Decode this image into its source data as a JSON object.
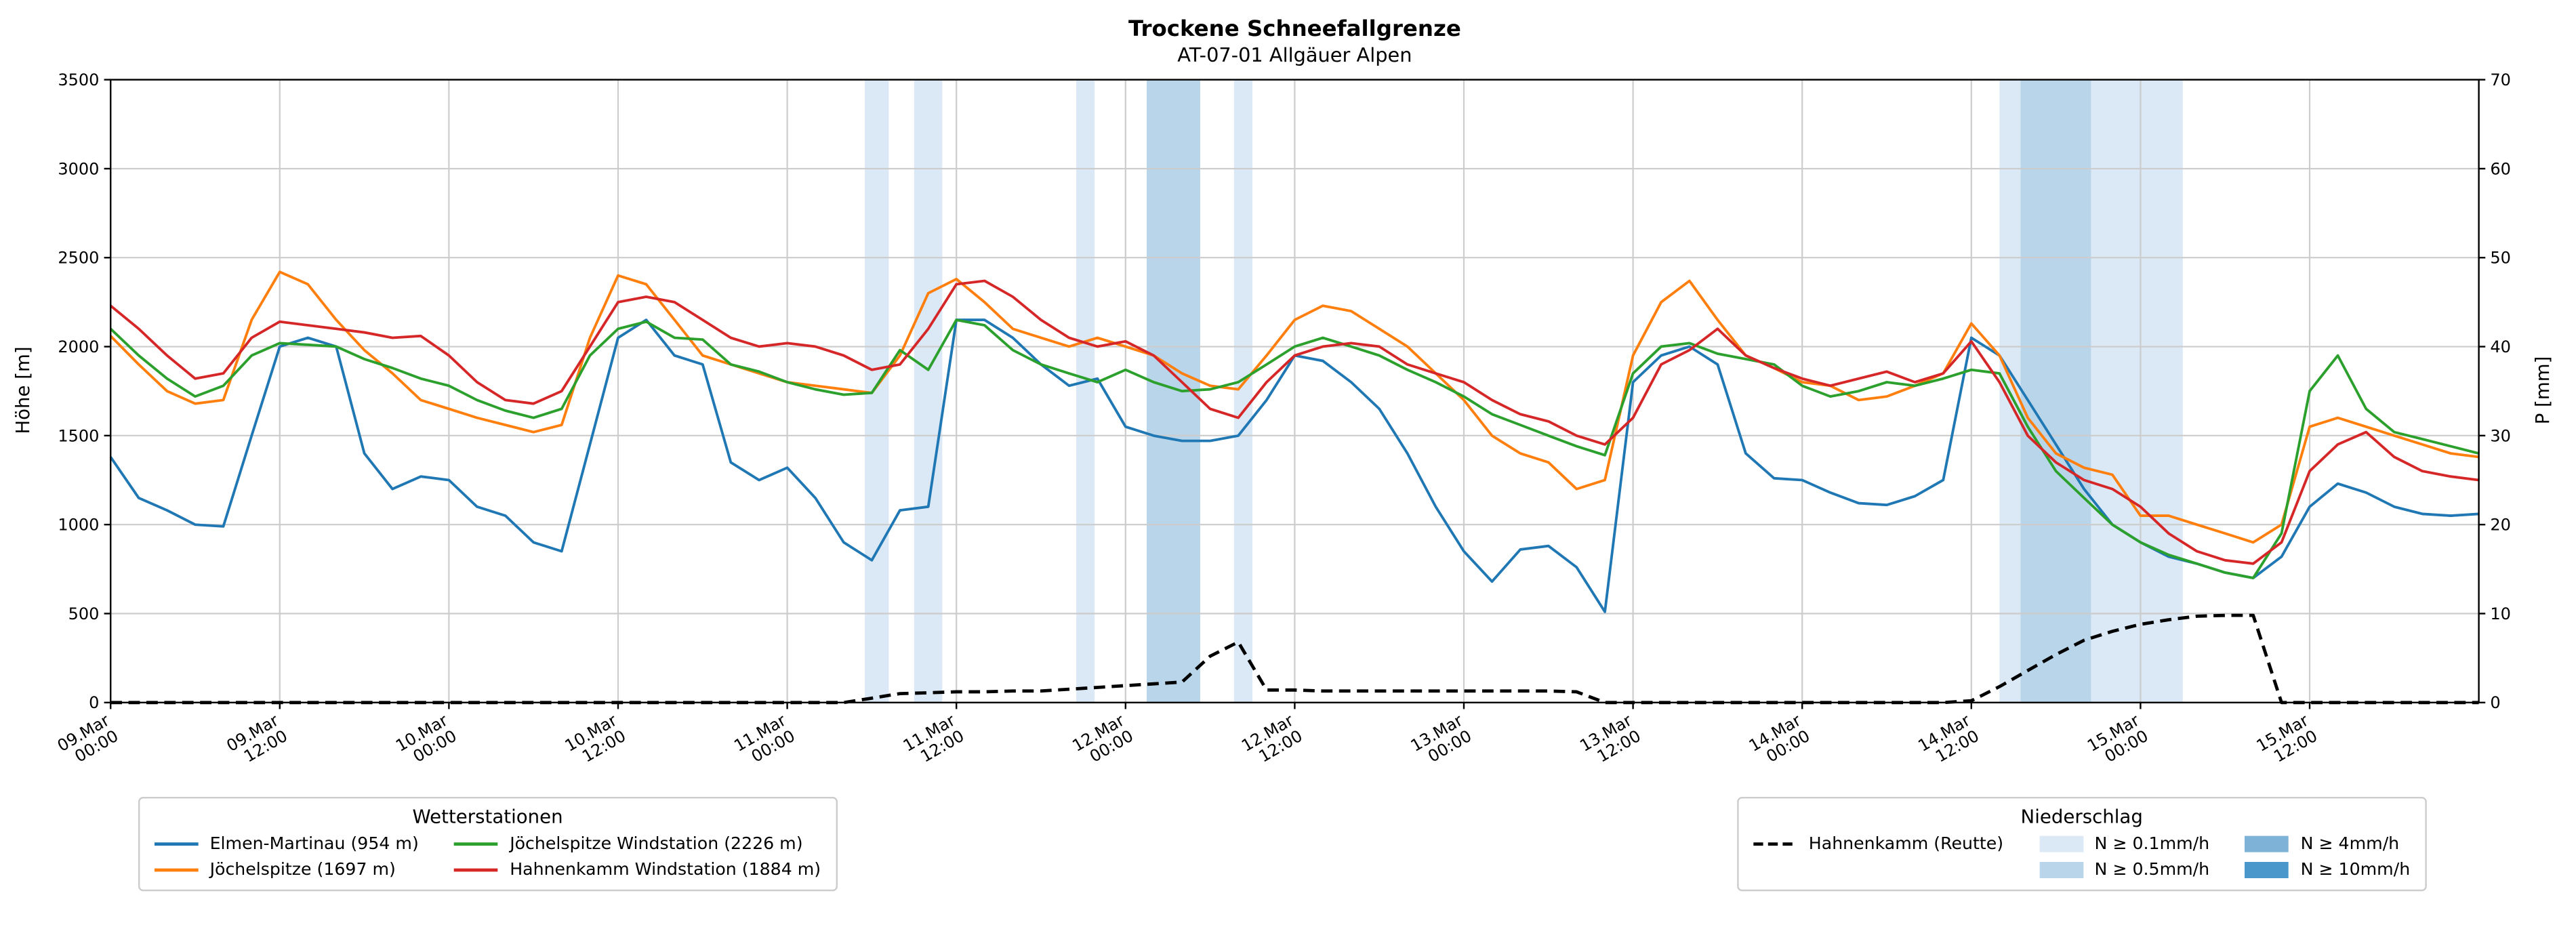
{
  "figure": {
    "title": "Trockene Schneefallgrenze",
    "subtitle": "AT-07-01 Allgäuer Alpen",
    "ylabel_left": "Höhe [m]",
    "ylabel_right": "P [mm]"
  },
  "chart_data": {
    "type": "line",
    "title": "Trockene Schneefallgrenze",
    "subtitle": "AT-07-01 Allgäuer Alpen",
    "xlabel": "",
    "ylabel_left": "Höhe [m]",
    "ylabel_right": "P [mm]",
    "grid": true,
    "xlim": [
      0,
      168
    ],
    "ylim_left": [
      0,
      3500
    ],
    "ylim_right": [
      0,
      70
    ],
    "yticks_left": [
      0,
      500,
      1000,
      1500,
      2000,
      2500,
      3000,
      3500
    ],
    "yticks_right": [
      0,
      10,
      20,
      30,
      40,
      50,
      60,
      70
    ],
    "xticks": [
      {
        "hour": 0,
        "label1": "09.Mar",
        "label2": "00:00"
      },
      {
        "hour": 12,
        "label1": "09.Mar",
        "label2": "12:00"
      },
      {
        "hour": 24,
        "label1": "10.Mar",
        "label2": "00:00"
      },
      {
        "hour": 36,
        "label1": "10.Mar",
        "label2": "12:00"
      },
      {
        "hour": 48,
        "label1": "11.Mar",
        "label2": "00:00"
      },
      {
        "hour": 60,
        "label1": "11.Mar",
        "label2": "12:00"
      },
      {
        "hour": 72,
        "label1": "12.Mar",
        "label2": "00:00"
      },
      {
        "hour": 84,
        "label1": "12.Mar",
        "label2": "12:00"
      },
      {
        "hour": 96,
        "label1": "13.Mar",
        "label2": "00:00"
      },
      {
        "hour": 108,
        "label1": "13.Mar",
        "label2": "12:00"
      },
      {
        "hour": 120,
        "label1": "14.Mar",
        "label2": "00:00"
      },
      {
        "hour": 132,
        "label1": "14.Mar",
        "label2": "12:00"
      },
      {
        "hour": 144,
        "label1": "15.Mar",
        "label2": "00:00"
      },
      {
        "hour": 156,
        "label1": "15.Mar",
        "label2": "12:00"
      }
    ],
    "x_hours": [
      0,
      2,
      4,
      6,
      8,
      10,
      12,
      14,
      16,
      18,
      20,
      22,
      24,
      26,
      28,
      30,
      32,
      34,
      36,
      38,
      40,
      42,
      44,
      46,
      48,
      50,
      52,
      54,
      56,
      58,
      60,
      62,
      64,
      66,
      68,
      70,
      72,
      74,
      76,
      78,
      80,
      82,
      84,
      86,
      88,
      90,
      92,
      94,
      96,
      98,
      100,
      102,
      104,
      106,
      108,
      110,
      112,
      114,
      116,
      118,
      120,
      122,
      124,
      126,
      128,
      130,
      132,
      134,
      136,
      138,
      140,
      142,
      144,
      146,
      148,
      150,
      152,
      154,
      156,
      158,
      160,
      162,
      164,
      166,
      168
    ],
    "series": [
      {
        "id": "elmen-martinau",
        "name": "Elmen-Martinau (954 m)",
        "color": "#1f77b4",
        "axis": "left",
        "dashed": false,
        "values": [
          1380,
          1150,
          1080,
          1000,
          990,
          1500,
          2000,
          2050,
          2000,
          1400,
          1200,
          1270,
          1250,
          1100,
          1050,
          900,
          850,
          1450,
          2050,
          2150,
          1950,
          1900,
          1350,
          1250,
          1320,
          1150,
          900,
          800,
          1080,
          1100,
          2150,
          2150,
          2050,
          1900,
          1780,
          1820,
          1550,
          1500,
          1470,
          1470,
          1500,
          1700,
          1950,
          1920,
          1800,
          1650,
          1400,
          1100,
          850,
          680,
          860,
          880,
          760,
          510,
          1800,
          1950,
          2000,
          1900,
          1400,
          1260,
          1250,
          1180,
          1120,
          1110,
          1160,
          1250,
          2050,
          1950,
          1700,
          1450,
          1200,
          1000,
          900,
          820,
          780,
          730,
          700,
          820,
          1100,
          1230,
          1180,
          1100,
          1060,
          1050,
          1060
        ]
      },
      {
        "id": "joechelspitze",
        "name": "Jöchelspitze (1697 m)",
        "color": "#ff7f0e",
        "axis": "left",
        "dashed": false,
        "values": [
          2060,
          1900,
          1750,
          1680,
          1700,
          2150,
          2420,
          2350,
          2150,
          1980,
          1850,
          1700,
          1650,
          1600,
          1560,
          1520,
          1560,
          2050,
          2400,
          2350,
          2150,
          1950,
          1900,
          1850,
          1800,
          1780,
          1760,
          1740,
          1950,
          2300,
          2380,
          2250,
          2100,
          2050,
          2000,
          2050,
          2000,
          1950,
          1850,
          1780,
          1760,
          1950,
          2150,
          2230,
          2200,
          2100,
          2000,
          1850,
          1700,
          1500,
          1400,
          1350,
          1200,
          1250,
          1950,
          2250,
          2370,
          2150,
          1950,
          1880,
          1800,
          1780,
          1700,
          1720,
          1780,
          1850,
          2130,
          1950,
          1600,
          1400,
          1320,
          1280,
          1050,
          1050,
          1000,
          950,
          900,
          1000,
          1550,
          1600,
          1550,
          1500,
          1450,
          1400,
          1380
        ]
      },
      {
        "id": "joechelspitze-windstation",
        "name": "Jöchelspitze Windstation (2226 m)",
        "color": "#2ca02c",
        "axis": "left",
        "dashed": false,
        "values": [
          2100,
          1950,
          1820,
          1720,
          1780,
          1950,
          2020,
          2010,
          2000,
          1930,
          1880,
          1820,
          1780,
          1700,
          1640,
          1600,
          1650,
          1950,
          2100,
          2140,
          2050,
          2040,
          1900,
          1860,
          1800,
          1760,
          1730,
          1740,
          1980,
          1870,
          2150,
          2120,
          1980,
          1900,
          1850,
          1800,
          1870,
          1800,
          1750,
          1760,
          1800,
          1900,
          2000,
          2050,
          2000,
          1950,
          1870,
          1800,
          1720,
          1620,
          1560,
          1500,
          1440,
          1390,
          1850,
          2000,
          2020,
          1960,
          1930,
          1900,
          1780,
          1720,
          1750,
          1800,
          1780,
          1820,
          1870,
          1850,
          1550,
          1300,
          1150,
          1000,
          900,
          830,
          780,
          730,
          700,
          950,
          1750,
          1950,
          1650,
          1520,
          1480,
          1440,
          1400
        ]
      },
      {
        "id": "hahnenkamm-windstation",
        "name": "Hahnenkamm Windstation (1884 m)",
        "color": "#d62728",
        "axis": "left",
        "dashed": false,
        "values": [
          2230,
          2100,
          1950,
          1820,
          1850,
          2050,
          2140,
          2120,
          2100,
          2080,
          2050,
          2060,
          1950,
          1800,
          1700,
          1680,
          1750,
          2000,
          2250,
          2280,
          2250,
          2150,
          2050,
          2000,
          2020,
          2000,
          1950,
          1870,
          1900,
          2100,
          2350,
          2370,
          2280,
          2150,
          2050,
          2000,
          2030,
          1950,
          1800,
          1650,
          1600,
          1800,
          1950,
          2000,
          2020,
          2000,
          1900,
          1850,
          1800,
          1700,
          1620,
          1580,
          1500,
          1450,
          1600,
          1900,
          1980,
          2100,
          1950,
          1880,
          1820,
          1780,
          1820,
          1860,
          1800,
          1850,
          2030,
          1800,
          1500,
          1350,
          1250,
          1200,
          1100,
          950,
          850,
          800,
          780,
          900,
          1300,
          1450,
          1520,
          1380,
          1300,
          1270,
          1250
        ]
      },
      {
        "id": "hahnenkamm-reutte",
        "name": "Hahnenkamm (Reutte)",
        "color": "#000000",
        "axis": "right",
        "dashed": true,
        "values": [
          0,
          0,
          0,
          0,
          0,
          0,
          0,
          0,
          0,
          0,
          0,
          0,
          0,
          0,
          0,
          0,
          0,
          0,
          0,
          0,
          0,
          0,
          0,
          0,
          0,
          0,
          0,
          0.5,
          1.0,
          1.1,
          1.2,
          1.2,
          1.3,
          1.3,
          1.5,
          1.7,
          1.9,
          2.1,
          2.3,
          5.2,
          6.8,
          1.4,
          1.4,
          1.3,
          1.3,
          1.3,
          1.3,
          1.3,
          1.3,
          1.3,
          1.3,
          1.3,
          1.2,
          0,
          0,
          0,
          0,
          0,
          0,
          0,
          0,
          0,
          0,
          0,
          0,
          0,
          0.2,
          1.8,
          3.6,
          5.4,
          7.0,
          8.0,
          8.8,
          9.3,
          9.7,
          9.8,
          9.8,
          0,
          0,
          0,
          0,
          0,
          0,
          0,
          0
        ]
      }
    ],
    "precip_bands": [
      {
        "start": 53.5,
        "end": 55.2,
        "level": "p01"
      },
      {
        "start": 57.0,
        "end": 59.0,
        "level": "p01"
      },
      {
        "start": 68.5,
        "end": 69.8,
        "level": "p01"
      },
      {
        "start": 73.5,
        "end": 77.3,
        "level": "p05"
      },
      {
        "start": 79.7,
        "end": 81.0,
        "level": "p01"
      },
      {
        "start": 134.0,
        "end": 147.0,
        "level": "p01"
      },
      {
        "start": 135.5,
        "end": 140.5,
        "level": "p05"
      }
    ],
    "band_colors": {
      "p01": "#dbe8f5",
      "p05": "#b9d5ea",
      "p4": "#7eb2d7",
      "p10": "#4a98cb"
    }
  },
  "legends": {
    "stations": {
      "title": "Wetterstationen",
      "entries": [
        {
          "id": "elmen-martinau",
          "label": "Elmen-Martinau (954 m)",
          "color": "#1f77b4",
          "type": "line",
          "dashed": false
        },
        {
          "id": "joechelspitze",
          "label": "Jöchelspitze (1697 m)",
          "color": "#ff7f0e",
          "type": "line",
          "dashed": false
        },
        {
          "id": "joechelspitze-windstation",
          "label": "Jöchelspitze Windstation (2226 m)",
          "color": "#2ca02c",
          "type": "line",
          "dashed": false
        },
        {
          "id": "hahnenkamm-windstation",
          "label": "Hahnenkamm Windstation (1884 m)",
          "color": "#d62728",
          "type": "line",
          "dashed": false
        }
      ]
    },
    "precip": {
      "title": "Niederschlag",
      "entries": [
        {
          "id": "hahnenkamm-reutte",
          "label": "Hahnenkamm (Reutte)",
          "color": "#000000",
          "type": "line",
          "dashed": true
        },
        {
          "id": "spacer",
          "label": "",
          "type": "empty"
        },
        {
          "id": "n-01",
          "label": "N ≥ 0.1mm/h",
          "color": "#dbe8f5",
          "type": "patch"
        },
        {
          "id": "n-05",
          "label": "N ≥ 0.5mm/h",
          "color": "#b9d5ea",
          "type": "patch"
        },
        {
          "id": "n-4",
          "label": "N ≥ 4mm/h",
          "color": "#7eb2d7",
          "type": "patch"
        },
        {
          "id": "n-10",
          "label": "N ≥ 10mm/h",
          "color": "#4a98cb",
          "type": "patch"
        }
      ]
    }
  }
}
